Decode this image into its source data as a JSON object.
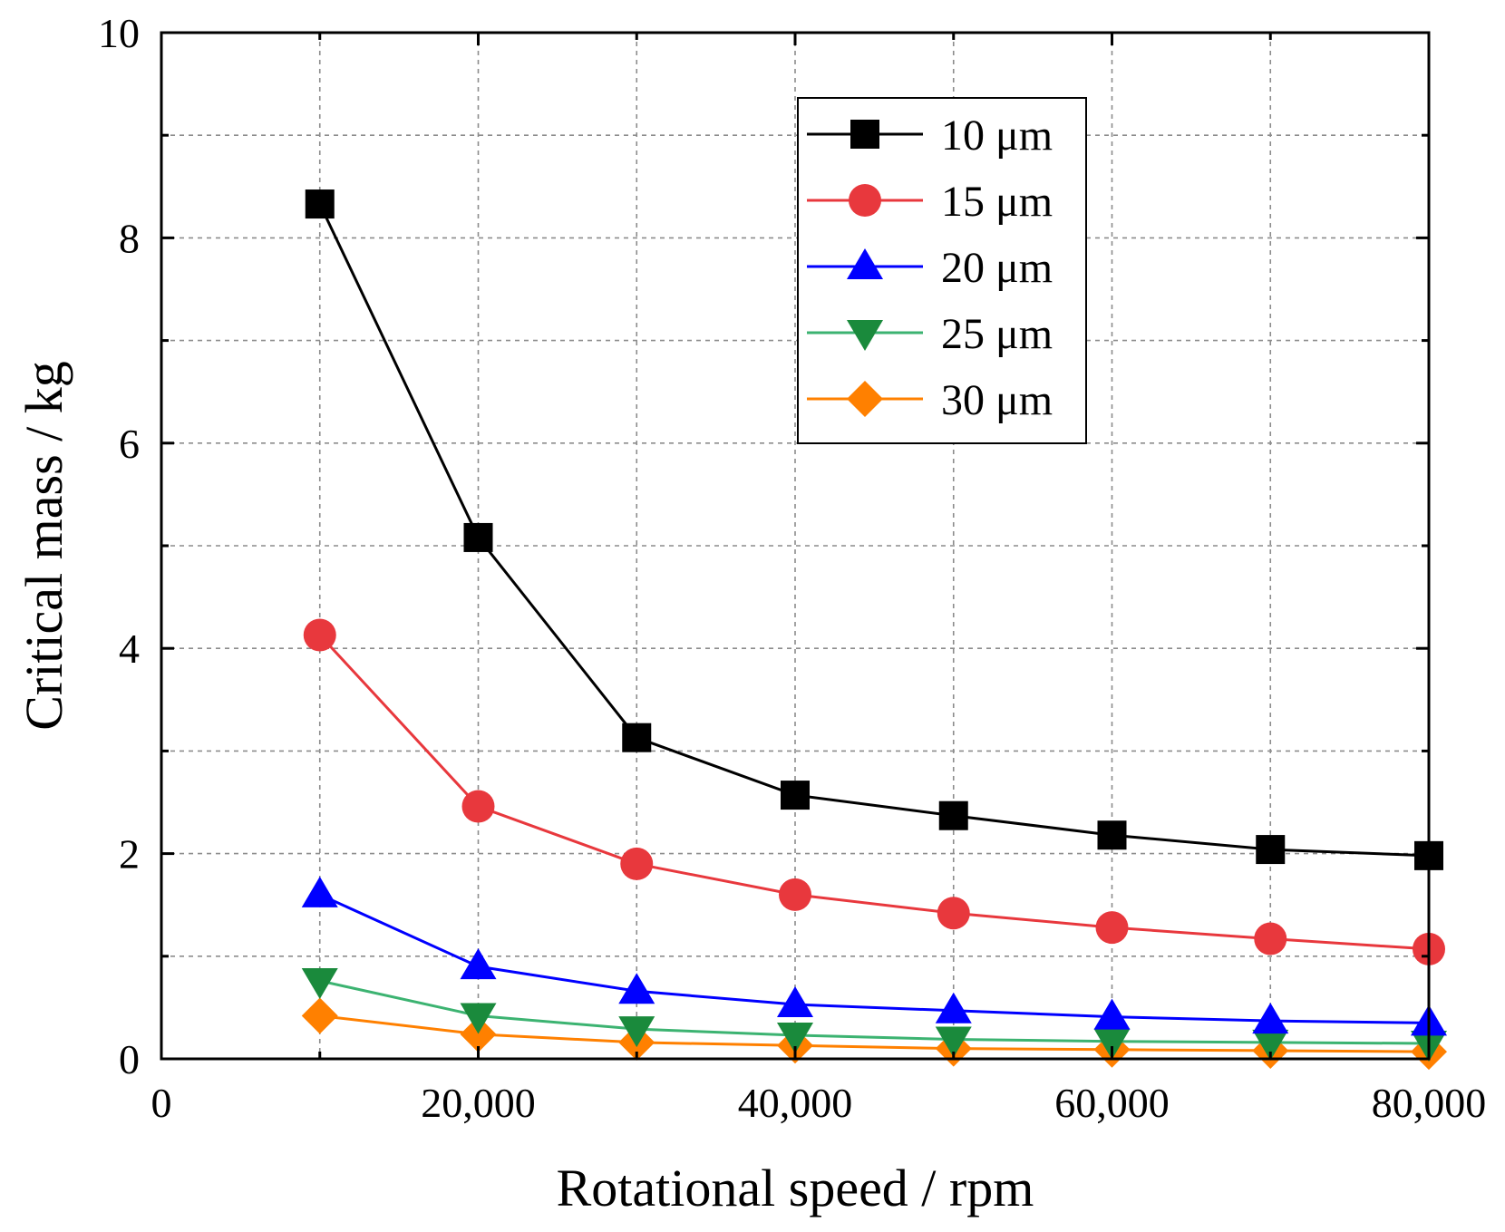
{
  "chart_data": {
    "type": "line",
    "title": "",
    "xlabel": "Rotational speed / rpm",
    "ylabel": "Critical mass / kg",
    "xlim": [
      0,
      80000
    ],
    "ylim": [
      0,
      10
    ],
    "x_ticks": [
      0,
      20000,
      40000,
      60000,
      80000
    ],
    "x_tick_labels": [
      "0",
      "20,000",
      "40,000",
      "60,000",
      "80,000"
    ],
    "y_ticks": [
      0,
      2,
      4,
      6,
      8,
      10
    ],
    "y_tick_labels": [
      "0",
      "2",
      "4",
      "6",
      "8",
      "10"
    ],
    "grid": true,
    "legend_position": "top-right",
    "x": [
      10000,
      20000,
      30000,
      40000,
      50000,
      60000,
      70000,
      80000
    ],
    "series": [
      {
        "name": "10 μm",
        "color": "#000000",
        "marker": "square",
        "values": [
          8.33,
          5.08,
          3.13,
          2.57,
          2.37,
          2.18,
          2.04,
          1.98
        ]
      },
      {
        "name": "15 μm",
        "color": "#e8383d",
        "marker": "circle",
        "values": [
          4.13,
          2.46,
          1.9,
          1.6,
          1.42,
          1.28,
          1.17,
          1.07
        ]
      },
      {
        "name": "20 μm",
        "color": "#0000ff",
        "marker": "triangle-up",
        "values": [
          1.6,
          0.9,
          0.66,
          0.53,
          0.47,
          0.41,
          0.37,
          0.35
        ]
      },
      {
        "name": "25 μm",
        "color": "#1a8a3c",
        "marker": "triangle-down",
        "line_color": "#3cb371",
        "values": [
          0.76,
          0.42,
          0.29,
          0.23,
          0.19,
          0.17,
          0.16,
          0.15
        ]
      },
      {
        "name": "30 μm",
        "color": "#ff8000",
        "marker": "diamond",
        "values": [
          0.42,
          0.24,
          0.16,
          0.13,
          0.1,
          0.09,
          0.08,
          0.07
        ]
      }
    ]
  }
}
